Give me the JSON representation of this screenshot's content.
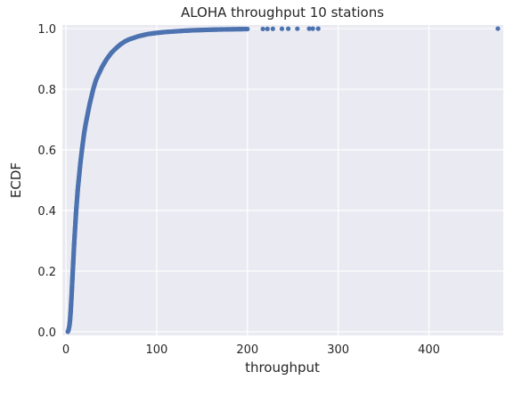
{
  "chart_data": {
    "type": "scatter",
    "title": "ALOHA throughput 10 stations",
    "xlabel": "throughput",
    "ylabel": "ECDF",
    "xlim": [
      -4,
      482
    ],
    "ylim": [
      -0.012,
      1.012
    ],
    "xticks": [
      0,
      100,
      200,
      300,
      400
    ],
    "yticks": [
      0.0,
      0.2,
      0.4,
      0.6,
      0.8,
      1.0
    ],
    "xtick_labels": [
      "0",
      "100",
      "200",
      "300",
      "400"
    ],
    "ytick_labels": [
      "0.0",
      "0.2",
      "0.4",
      "0.6",
      "0.8",
      "1.0"
    ],
    "grid": true,
    "background": "#eaeaf2",
    "grid_color": "#ffffff",
    "marker_color": "#4c72b0",
    "series": [
      {
        "points": [
          [
            2,
            0.0
          ],
          [
            2.5,
            0.003
          ],
          [
            3,
            0.008
          ],
          [
            3.5,
            0.015
          ],
          [
            4,
            0.025
          ],
          [
            4.5,
            0.04
          ],
          [
            5,
            0.06
          ],
          [
            5.5,
            0.085
          ],
          [
            6,
            0.11
          ],
          [
            6.5,
            0.14
          ],
          [
            7,
            0.17
          ],
          [
            7.5,
            0.2
          ],
          [
            8,
            0.23
          ],
          [
            9,
            0.29
          ],
          [
            10,
            0.34
          ],
          [
            11,
            0.39
          ],
          [
            12,
            0.43
          ],
          [
            13,
            0.47
          ],
          [
            14,
            0.5
          ],
          [
            15,
            0.53
          ],
          [
            16,
            0.56
          ],
          [
            18,
            0.61
          ],
          [
            20,
            0.655
          ],
          [
            22,
            0.69
          ],
          [
            24,
            0.72
          ],
          [
            26,
            0.75
          ],
          [
            28,
            0.775
          ],
          [
            30,
            0.8
          ],
          [
            33,
            0.83
          ],
          [
            36,
            0.85
          ],
          [
            40,
            0.875
          ],
          [
            45,
            0.9
          ],
          [
            50,
            0.92
          ],
          [
            55,
            0.935
          ],
          [
            60,
            0.948
          ],
          [
            65,
            0.958
          ],
          [
            70,
            0.965
          ],
          [
            80,
            0.975
          ],
          [
            90,
            0.982
          ],
          [
            100,
            0.986
          ],
          [
            110,
            0.989
          ],
          [
            120,
            0.991
          ],
          [
            130,
            0.993
          ],
          [
            140,
            0.9945
          ],
          [
            150,
            0.9955
          ],
          [
            160,
            0.9965
          ],
          [
            170,
            0.9972
          ],
          [
            180,
            0.9978
          ],
          [
            190,
            0.9983
          ],
          [
            200,
            0.9987
          ],
          [
            217,
            0.999
          ],
          [
            222,
            0.9992
          ],
          [
            228,
            0.9994
          ],
          [
            238,
            0.9995
          ],
          [
            245,
            0.9996
          ],
          [
            255,
            0.9997
          ],
          [
            268,
            0.9998
          ],
          [
            272,
            0.9998
          ],
          [
            278,
            0.9999
          ],
          [
            476,
            1.0
          ]
        ]
      }
    ]
  }
}
